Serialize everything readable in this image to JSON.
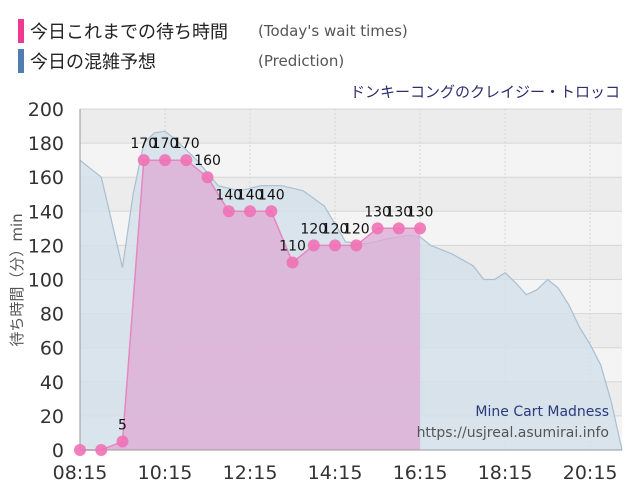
{
  "legend": {
    "wait": {
      "label": "今日これまでの待ち時間",
      "note": "(Today's wait times)",
      "color": "#ee3a92"
    },
    "pred": {
      "label": "今日の混雑予想",
      "note": "(Prediction)",
      "color": "#4f7fb0"
    }
  },
  "attraction_name": "ドンキーコングのクレイジー・トロッコ",
  "watermark": {
    "title": "Mine Cart Madness",
    "url": "https://usjreal.asumirai.info"
  },
  "colors": {
    "wait_fill": "#dda9d5",
    "wait_line": "#e687c0",
    "wait_point": "#ef72b6",
    "pred_fill": "#d4e0ea",
    "pred_line": "#a9bfd1",
    "plot_bg": "#f4f4f4",
    "band_bg": "#ececec",
    "grid": "#d6d6d6",
    "axis_text": "#333333"
  },
  "chart_data": {
    "type": "area",
    "ylabel": "待ち時間（分）min",
    "ylim": [
      0,
      200
    ],
    "yticks": [
      0,
      20,
      40,
      60,
      80,
      100,
      120,
      140,
      160,
      180,
      200
    ],
    "xlim": [
      "08:15",
      "21:00"
    ],
    "xticks": [
      "08:15",
      "10:15",
      "12:15",
      "14:15",
      "16:15",
      "18:15",
      "20:15"
    ],
    "grid": true,
    "series": [
      {
        "kind": "actual",
        "x": [
          "08:15",
          "08:45",
          "09:15",
          "09:45",
          "10:15",
          "10:45",
          "11:15",
          "11:45",
          "12:15",
          "12:45",
          "13:15",
          "13:45",
          "14:15",
          "14:45",
          "15:15",
          "15:45",
          "16:15"
        ],
        "values": [
          0,
          0,
          5,
          170,
          170,
          170,
          160,
          140,
          140,
          140,
          110,
          120,
          120,
          120,
          130,
          130,
          130
        ]
      },
      {
        "kind": "forecast",
        "x": [
          "08:15",
          "08:45",
          "09:15",
          "09:30",
          "09:45",
          "10:00",
          "10:15",
          "10:30",
          "11:00",
          "11:30",
          "12:00",
          "12:30",
          "13:00",
          "13:30",
          "14:00",
          "14:30",
          "15:00",
          "15:30",
          "16:00",
          "16:15",
          "16:30",
          "17:00",
          "17:30",
          "17:45",
          "18:00",
          "18:15",
          "18:30",
          "18:45",
          "19:00",
          "19:15",
          "19:30",
          "19:45",
          "20:00",
          "20:15",
          "20:30",
          "20:45",
          "21:00"
        ],
        "values": [
          170,
          160,
          107,
          150,
          180,
          186,
          187,
          182,
          170,
          155,
          152,
          155,
          155,
          152,
          143,
          122,
          121,
          124,
          126,
          125,
          120,
          115,
          108,
          100,
          100,
          104,
          98,
          91,
          94,
          100,
          95,
          85,
          72,
          62,
          50,
          28,
          0
        ]
      }
    ]
  }
}
